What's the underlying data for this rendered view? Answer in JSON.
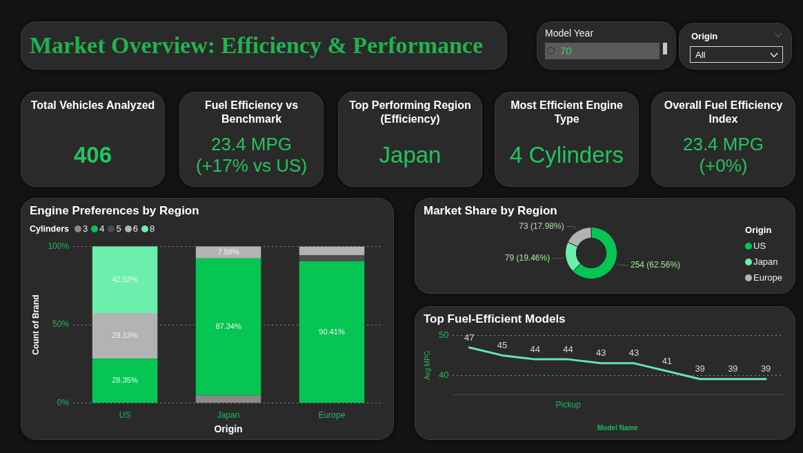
{
  "chart_data": [
    {
      "type": "other",
      "title": "Market Overview: Efficiency & Performance"
    },
    {
      "type": "other",
      "title": "Model Year",
      "annotations": [
        "70"
      ]
    },
    {
      "type": "other",
      "title": "Origin",
      "annotations": [
        "All"
      ]
    },
    {
      "type": "other",
      "title": "Total Vehicles Analyzed",
      "annotations": [
        "406"
      ]
    },
    {
      "type": "other",
      "title": "Fuel Efficiency vs Benchmark",
      "annotations": [
        "23.4 MPG",
        "(+17% vs US)"
      ]
    },
    {
      "type": "other",
      "title": "Top Performing Region (Efficiency)",
      "annotations": [
        "Japan"
      ]
    },
    {
      "type": "other",
      "title": "Most Efficient Engine Type",
      "annotations": [
        "4 Cylinders"
      ]
    },
    {
      "type": "other",
      "title": "Overall Fuel Efficiency Index",
      "annotations": [
        "23.4 MPG",
        "(+0%)"
      ]
    },
    {
      "type": "bar",
      "title": "Engine Preferences by Region",
      "legend_title": "Cylinders",
      "legend": "top left",
      "xlabel": "Origin",
      "ylabel": "Count of Brand",
      "categories": [
        "US",
        "Japan",
        "Europe"
      ],
      "stacked": true,
      "ylim": [
        0,
        100
      ],
      "yticks": [
        {
          "value": 0,
          "label": "0%"
        },
        {
          "value": 50,
          "label": "50%"
        },
        {
          "value": 100,
          "label": "100%"
        }
      ],
      "grid": "y",
      "series": [
        {
          "name": "3",
          "color": "#8a8a8a",
          "values": [
            null,
            5,
            null
          ],
          "value_labels": [
            null,
            null,
            null
          ]
        },
        {
          "name": "4",
          "color": "#05c653",
          "values": [
            28.35,
            87.34,
            90.41
          ],
          "value_labels": [
            "28.35%",
            "87.34%",
            "90.41%"
          ]
        },
        {
          "name": "5",
          "color": "#4d4d4d",
          "values": [
            null,
            null,
            4
          ],
          "value_labels": [
            null,
            null,
            null
          ]
        },
        {
          "name": "6",
          "color": "#b3b3b3",
          "values": [
            29.13,
            7.59,
            5.5
          ],
          "value_labels": [
            "29.13%",
            "7.59%",
            null
          ]
        },
        {
          "name": "8",
          "color": "#6cefad",
          "values": [
            42.52,
            null,
            null
          ],
          "value_labels": [
            "42.52%",
            null,
            null
          ]
        }
      ]
    },
    {
      "type": "donut",
      "title": "Market Share by Region",
      "legend_title": "Origin",
      "legend": "right",
      "categories": [
        "US",
        "Japan",
        "Europe"
      ],
      "values": [
        254,
        79,
        73
      ],
      "colors": [
        "#05c653",
        "#6cefad",
        "#b3b3b3"
      ],
      "value_labels": [
        "254 (62.56%)",
        "79 (19.46%)",
        "73 (17.98%)"
      ]
    },
    {
      "type": "line",
      "title": "Top Fuel-Efficient Models",
      "xlabel": "Model Name",
      "ylabel": "Avg MPG",
      "categories": [
        null,
        null,
        null,
        "Pickup",
        null,
        null,
        null,
        null,
        null,
        null
      ],
      "values": [
        47,
        45,
        44,
        44,
        43,
        43,
        41,
        39,
        39,
        39
      ],
      "color": "#62e9ad",
      "marker": "none",
      "data_labels": true,
      "ylim": [
        35,
        50
      ],
      "yticks": [
        40,
        50
      ],
      "grid": "y"
    }
  ]
}
